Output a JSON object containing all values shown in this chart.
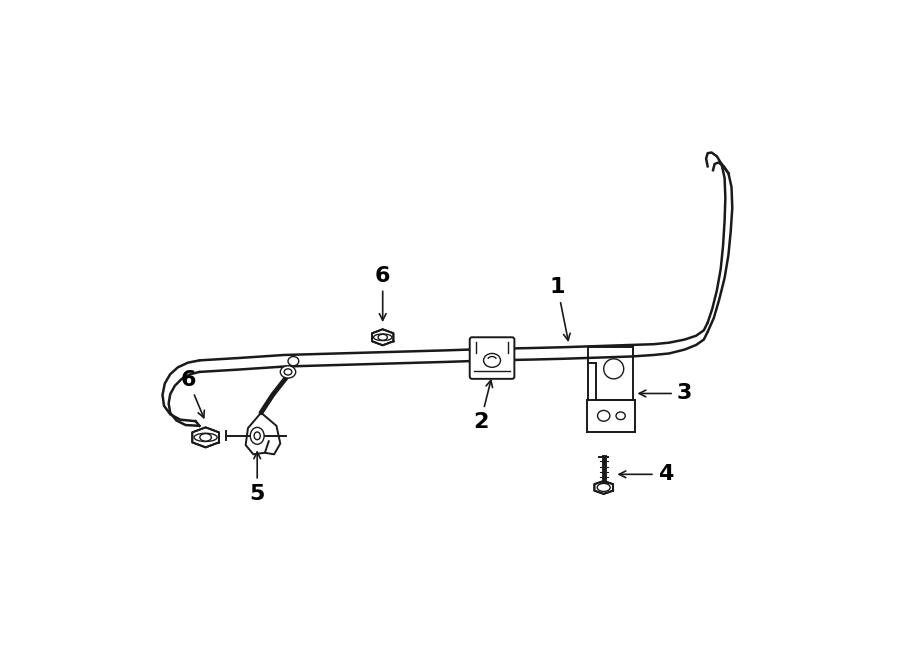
{
  "bg_color": "#ffffff",
  "line_color": "#1a1a1a",
  "lw_bar": 1.8,
  "lw_detail": 1.4,
  "lw_thin": 1.0,
  "fig_width": 9.0,
  "fig_height": 6.61,
  "dpi": 100
}
